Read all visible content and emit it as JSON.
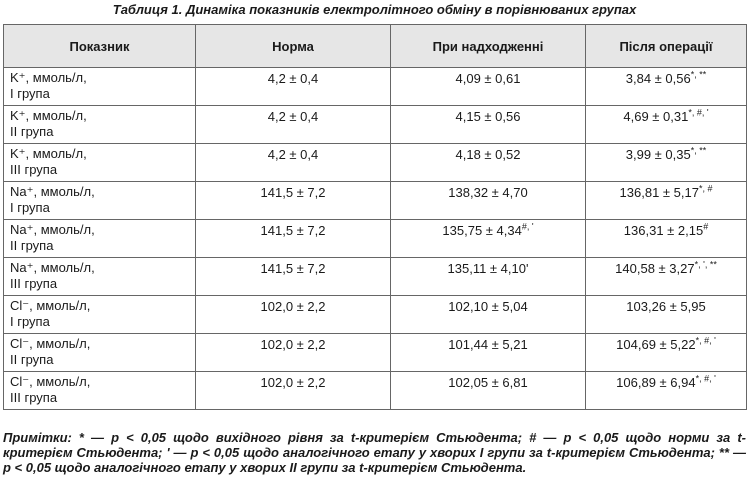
{
  "title": "Таблиця 1. Динаміка показників електролітного обміну в порівнюваних групах",
  "table": {
    "header": [
      "Показник",
      "Норма",
      "При надходженні",
      "Після операції"
    ],
    "rows": [
      [
        {
          "indicator": "K⁺, ммоль/л,",
          "group": "I група"
        },
        {
          "text": "4,2 ± 0,4"
        },
        {
          "text": "4,09 ± 0,61"
        },
        {
          "text": "3,84 ± 0,56",
          "sup": "*, **"
        }
      ],
      [
        {
          "indicator": "K⁺, ммоль/л,",
          "group": "II група"
        },
        {
          "text": "4,2 ± 0,4"
        },
        {
          "text": "4,15 ± 0,56"
        },
        {
          "text": "4,69 ± 0,31",
          "sup": "*, #, '"
        }
      ],
      [
        {
          "indicator": "K⁺, ммоль/л,",
          "group": "III група"
        },
        {
          "text": "4,2 ± 0,4"
        },
        {
          "text": "4,18 ± 0,52"
        },
        {
          "text": "3,99 ± 0,35",
          "sup": "*, **"
        }
      ],
      [
        {
          "indicator": "Na⁺, ммоль/л,",
          "group": "I група"
        },
        {
          "text": "141,5 ± 7,2"
        },
        {
          "text": "138,32 ± 4,70"
        },
        {
          "text": "136,81 ± 5,17",
          "sup": "*, #"
        }
      ],
      [
        {
          "indicator": "Na⁺, ммоль/л,",
          "group": "II група"
        },
        {
          "text": "141,5 ± 7,2"
        },
        {
          "text": "135,75 ± 4,34",
          "sup": "#, '"
        },
        {
          "text": "136,31 ± 2,15",
          "sup": "#"
        }
      ],
      [
        {
          "indicator": "Na⁺, ммоль/л,",
          "group": "III група"
        },
        {
          "text": "141,5 ± 7,2"
        },
        {
          "text": "135,11 ± 4,10'"
        },
        {
          "text": "140,58 ± 3,27",
          "sup": "*, ', **"
        }
      ],
      [
        {
          "indicator": "Cl⁻, ммоль/л,",
          "group": "I група"
        },
        {
          "text": "102,0 ± 2,2"
        },
        {
          "text": "102,10 ± 5,04"
        },
        {
          "text": "103,26 ± 5,95"
        }
      ],
      [
        {
          "indicator": "Cl⁻, ммоль/л,",
          "group": "II група"
        },
        {
          "text": "102,0 ± 2,2"
        },
        {
          "text": "101,44 ± 5,21"
        },
        {
          "text": "104,69 ± 5,22",
          "sup": "*, #, '"
        }
      ],
      [
        {
          "indicator": "Cl⁻, ммоль/л,",
          "group": "III група"
        },
        {
          "text": "102,0 ± 2,2"
        },
        {
          "text": "102,05 ± 6,81"
        },
        {
          "text": "106,89 ± 6,94",
          "sup": "*, #, '"
        }
      ]
    ]
  },
  "notes": "Примітки: * — p < 0,05 щодо вихідного рівня за t-критерієм Стьюдента; # — p < 0,05 щодо норми за t-критерієм Стьюдента; ' — p < 0,05 щодо аналогічного етапу у хворих I групи за t-критерієм Стьюдента; ** — p < 0,05 щодо аналогічного етапу у хворих II групи за t-критерієм Стьюдента."
}
